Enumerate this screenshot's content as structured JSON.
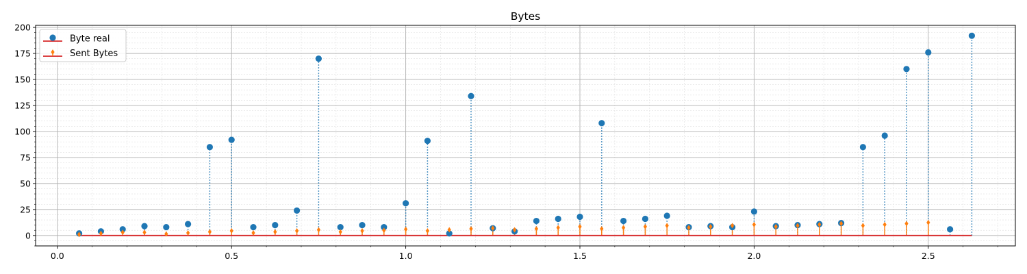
{
  "chart_data": {
    "type": "stem",
    "title": "Bytes",
    "xlabel": "",
    "ylabel": "",
    "xlim": [
      -0.0625,
      2.75
    ],
    "ylim": [
      -10,
      202
    ],
    "x_ticks": [
      0.0,
      0.5,
      1.0,
      1.5,
      2.0,
      2.5
    ],
    "x_tick_labels": [
      "0.0",
      "0.5",
      "1.0",
      "1.5",
      "2.0",
      "2.5"
    ],
    "y_ticks": [
      0,
      25,
      50,
      75,
      100,
      125,
      150,
      175,
      200
    ],
    "y_tick_labels": [
      "0",
      "25",
      "50",
      "75",
      "100",
      "125",
      "150",
      "175",
      "200"
    ],
    "grid": {
      "major": true,
      "minor": true
    },
    "legend_position": "top-left",
    "baseline": 0,
    "baseline_color": "#d62728",
    "x": [
      0.0625,
      0.125,
      0.1875,
      0.25,
      0.3125,
      0.375,
      0.4375,
      0.5,
      0.5625,
      0.625,
      0.6875,
      0.75,
      0.8125,
      0.875,
      0.9375,
      1.0,
      1.0625,
      1.125,
      1.1875,
      1.25,
      1.3125,
      1.375,
      1.4375,
      1.5,
      1.5625,
      1.625,
      1.6875,
      1.75,
      1.8125,
      1.875,
      1.9375,
      2.0,
      2.0625,
      2.125,
      2.1875,
      2.25,
      2.3125,
      2.375,
      2.4375,
      2.5,
      2.5625,
      2.625
    ],
    "series": [
      {
        "name": "Byte real",
        "color": "#1f77b4",
        "marker": "circle",
        "linestyle": "dotted",
        "values": [
          2,
          4,
          6,
          9,
          8,
          11,
          85,
          92,
          8,
          10,
          24,
          170,
          8,
          10,
          8,
          31,
          91,
          2,
          134,
          7,
          4,
          14,
          16,
          18,
          108,
          14,
          16,
          19,
          8,
          9,
          8,
          23,
          9,
          10,
          11,
          12,
          85,
          96,
          160,
          176,
          6,
          192
        ]
      },
      {
        "name": "Sent Bytes",
        "color": "#ff7f0e",
        "marker": "diamond",
        "linestyle": "solid",
        "values": [
          1,
          2,
          3,
          3,
          1.5,
          2.5,
          3.5,
          4.5,
          2.5,
          3.5,
          4.5,
          5.5,
          3.5,
          4.5,
          5,
          6,
          4.5,
          5.5,
          6.5,
          7,
          5.5,
          6.5,
          7.5,
          8.5,
          6.5,
          7.5,
          8.5,
          9.5,
          7.5,
          8.5,
          9.5,
          10.5,
          8.5,
          9.5,
          10.5,
          11.5,
          9.5,
          10.5,
          11.5,
          12.5,
          0,
          0
        ]
      }
    ]
  }
}
